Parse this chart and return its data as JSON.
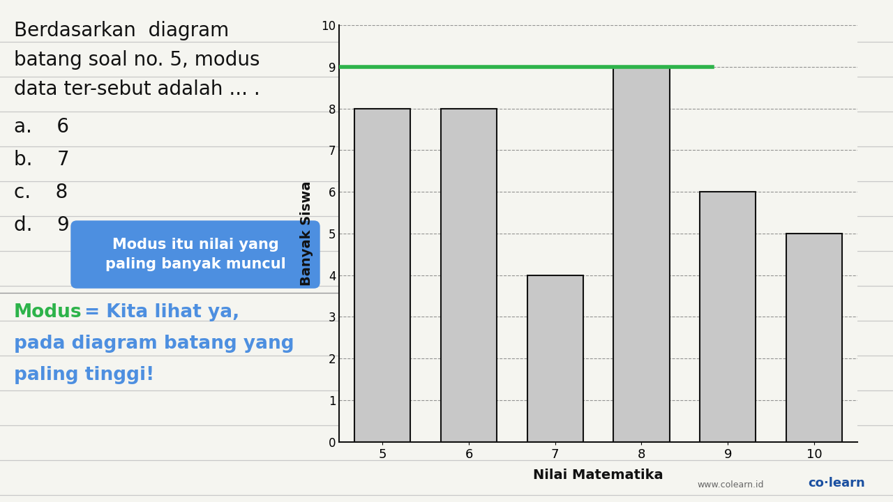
{
  "categories": [
    5,
    6,
    7,
    8,
    9,
    10
  ],
  "values": [
    8,
    8,
    4,
    9,
    6,
    5
  ],
  "bar_color": "#c8c8c8",
  "bar_edgecolor": "#111111",
  "xlabel": "Nilai Matematika",
  "ylabel": "Banyak Siswa",
  "ylim": [
    0,
    10
  ],
  "yticks": [
    0,
    1,
    2,
    3,
    4,
    5,
    6,
    7,
    8,
    9,
    10
  ],
  "green_line_y": 9,
  "green_line_color": "#2db34a",
  "title_line1": "Berdasarkan  diagram",
  "title_line2": "batang soal no. 5, modus",
  "title_line3": "data ter-sebut adalah ... .",
  "choice_a": "a.    6",
  "choice_b": "b.    7",
  "choice_c": "c.    8",
  "choice_d": "d.    9",
  "bubble_text": "Modus itu nilai yang\npaling banyak muncul",
  "bubble_color": "#4d8fe0",
  "bubble_text_color": "#ffffff",
  "modus_word": "Modus",
  "modus_rest1": " = Kita lihat ya,",
  "modus_rest2": "pada diagram batang yang",
  "modus_rest3": "paling tinggi!",
  "modus_color": "#2db34a",
  "explanation_color": "#4d8fe0",
  "background_color": "#f5f5f0",
  "line_color": "#c8c8c8",
  "colearn_text": "co·learn",
  "website_text": "www.colearn.id"
}
